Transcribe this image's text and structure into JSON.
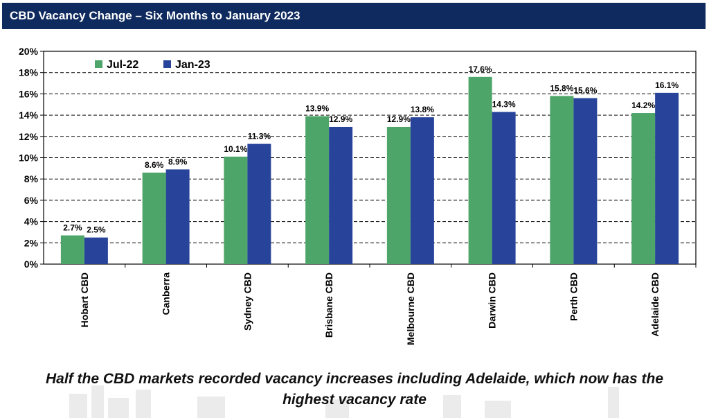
{
  "banner": {
    "title": "CBD Vacancy Change – Six Months to January 2023"
  },
  "caption": {
    "line1": "Half the CBD markets recorded vacancy increases including Adelaide, which now has the",
    "line2": "highest vacancy rate"
  },
  "colors": {
    "jul22": "#4ea56a",
    "jan23": "#27449a",
    "banner": "#0f2a5e"
  },
  "chart_data": {
    "type": "bar",
    "categories": [
      "Hobart CBD",
      "Canberra",
      "Sydney CBD",
      "Brisbane CBD",
      "Melbourne CBD",
      "Darwin CBD",
      "Perth CBD",
      "Adelaide CBD"
    ],
    "series": [
      {
        "name": "Jul-22",
        "values": [
          2.7,
          8.6,
          10.1,
          13.9,
          12.9,
          17.6,
          15.8,
          14.2
        ]
      },
      {
        "name": "Jan-23",
        "values": [
          2.5,
          8.9,
          11.3,
          12.9,
          13.8,
          14.3,
          15.6,
          16.1
        ]
      }
    ],
    "data_labels": [
      [
        "2.7%",
        "8.6%",
        "10.1%",
        "13.9%",
        "12.9%",
        "17.6%",
        "15.8%",
        "14.2%"
      ],
      [
        "2.5%",
        "8.9%",
        "11.3%",
        "12.9%",
        "13.8%",
        "14.3%",
        "15.6%",
        "16.1%"
      ]
    ],
    "y_ticks": [
      "0%",
      "2%",
      "4%",
      "6%",
      "8%",
      "10%",
      "12%",
      "14%",
      "16%",
      "18%",
      "20%"
    ],
    "ylim": [
      0,
      20
    ],
    "grid": "dashed horizontal",
    "legend_position": "top-left",
    "title": "",
    "xlabel": "",
    "ylabel": ""
  }
}
